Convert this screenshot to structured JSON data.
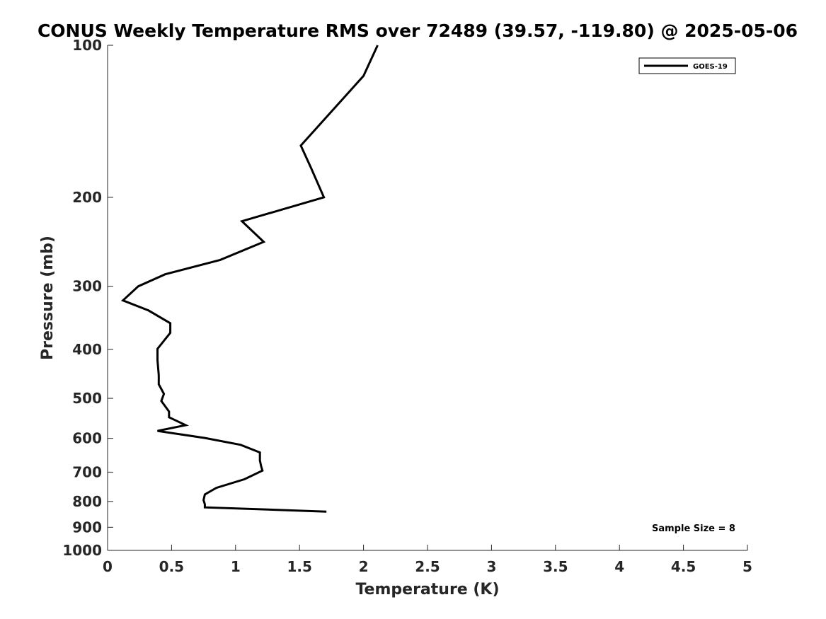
{
  "chart_data": {
    "type": "line",
    "title": "CONUS Weekly Temperature RMS over 72489 (39.57, -119.80) @ 2025-05-06",
    "xlabel": "Temperature (K)",
    "ylabel": "Pressure (mb)",
    "xlim": [
      0,
      5
    ],
    "ylim": [
      1000,
      100
    ],
    "yscale": "log",
    "xticks": [
      "0",
      "0.5",
      "1",
      "1.5",
      "2",
      "2.5",
      "3",
      "3.5",
      "4",
      "4.5",
      "5"
    ],
    "xtick_values": [
      0,
      0.5,
      1,
      1.5,
      2,
      2.5,
      3,
      3.5,
      4,
      4.5,
      5
    ],
    "yticks": [
      "100",
      "200",
      "300",
      "400",
      "500",
      "600",
      "700",
      "800",
      "900",
      "1000"
    ],
    "ytick_values": [
      100,
      200,
      300,
      400,
      500,
      600,
      700,
      800,
      900,
      1000
    ],
    "grid": false,
    "legend": {
      "placement": "top-right",
      "entries": [
        "GOES-19"
      ]
    },
    "annotation": "Sample Size = 8",
    "series": [
      {
        "name": "GOES-19",
        "color": "#000000",
        "x": [
          2.11,
          2.0,
          1.51,
          1.59,
          1.69,
          1.05,
          1.22,
          0.88,
          0.45,
          0.24,
          0.12,
          0.32,
          0.49,
          0.49,
          0.39,
          0.39,
          0.4,
          0.4,
          0.44,
          0.42,
          0.48,
          0.48,
          0.61,
          0.39,
          0.76,
          1.04,
          1.19,
          1.19,
          1.2,
          1.21,
          1.07,
          0.85,
          0.76,
          0.75,
          0.76,
          0.76,
          1.71
        ],
        "y": [
          100,
          115,
          158,
          175,
          200,
          223,
          245,
          266,
          284,
          300,
          320,
          335,
          355,
          371,
          399,
          420,
          450,
          469,
          490,
          506,
          531,
          545,
          565,
          580,
          599,
          618,
          640,
          664,
          682,
          695,
          723,
          752,
          775,
          795,
          810,
          822,
          838
        ]
      }
    ]
  }
}
